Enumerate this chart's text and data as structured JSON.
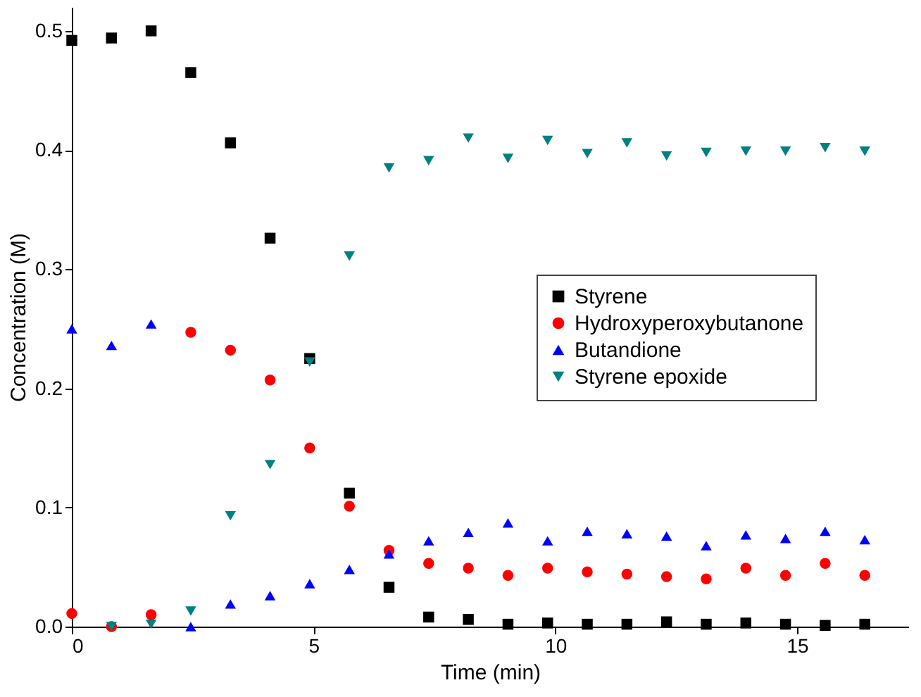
{
  "chart_data": {
    "type": "scatter",
    "xlabel": "Time (min)",
    "ylabel": "Concentration (M)",
    "x": [
      0,
      0.82,
      1.64,
      2.46,
      3.28,
      4.1,
      4.92,
      5.74,
      6.56,
      7.38,
      8.2,
      9.02,
      9.84,
      10.66,
      11.48,
      12.3,
      13.12,
      13.94,
      14.76,
      15.58,
      16.4
    ],
    "series": [
      {
        "name": "Styrene",
        "color": "#000000",
        "marker": "square",
        "values": [
          0.492,
          0.494,
          0.5,
          0.465,
          0.406,
          0.326,
          0.225,
          0.112,
          0.033,
          0.008,
          0.006,
          0.002,
          0.003,
          0.002,
          0.002,
          0.004,
          0.002,
          0.003,
          0.002,
          0.001,
          0.002
        ]
      },
      {
        "name": "Hydroxyperoxybutanone",
        "color": "#ff0000",
        "marker": "circle",
        "values": [
          0.011,
          0.0,
          0.01,
          0.247,
          0.232,
          0.207,
          0.15,
          0.101,
          0.064,
          0.053,
          0.049,
          0.043,
          0.049,
          0.046,
          0.044,
          0.042,
          0.04,
          0.049,
          0.043,
          0.053,
          0.043
        ]
      },
      {
        "name": "Butandione",
        "color": "#0000ff",
        "marker": "triangle",
        "values": [
          0.25,
          0.236,
          0.254,
          0.0,
          0.019,
          0.026,
          0.036,
          0.048,
          0.061,
          0.072,
          0.079,
          0.087,
          0.072,
          0.08,
          0.078,
          0.076,
          0.068,
          0.077,
          0.074,
          0.08,
          0.073
        ]
      },
      {
        "name": "Styrene epoxide",
        "color": "#008080",
        "marker": "triangle-down",
        "values": [
          null,
          0.0,
          0.002,
          0.013,
          0.093,
          0.136,
          0.222,
          0.311,
          0.385,
          0.391,
          0.41,
          0.393,
          0.408,
          0.397,
          0.406,
          0.395,
          0.398,
          0.399,
          0.399,
          0.402,
          0.399
        ]
      }
    ],
    "xlim": [
      0,
      17.3
    ],
    "xticks": [
      0,
      5,
      10,
      15
    ],
    "ylim": [
      0,
      0.52
    ],
    "yticks": [
      {
        "value": 0,
        "label": "0.0"
      },
      0.1,
      0.2,
      0.3,
      0.4,
      0.5
    ],
    "grid": false,
    "legend": "right"
  }
}
